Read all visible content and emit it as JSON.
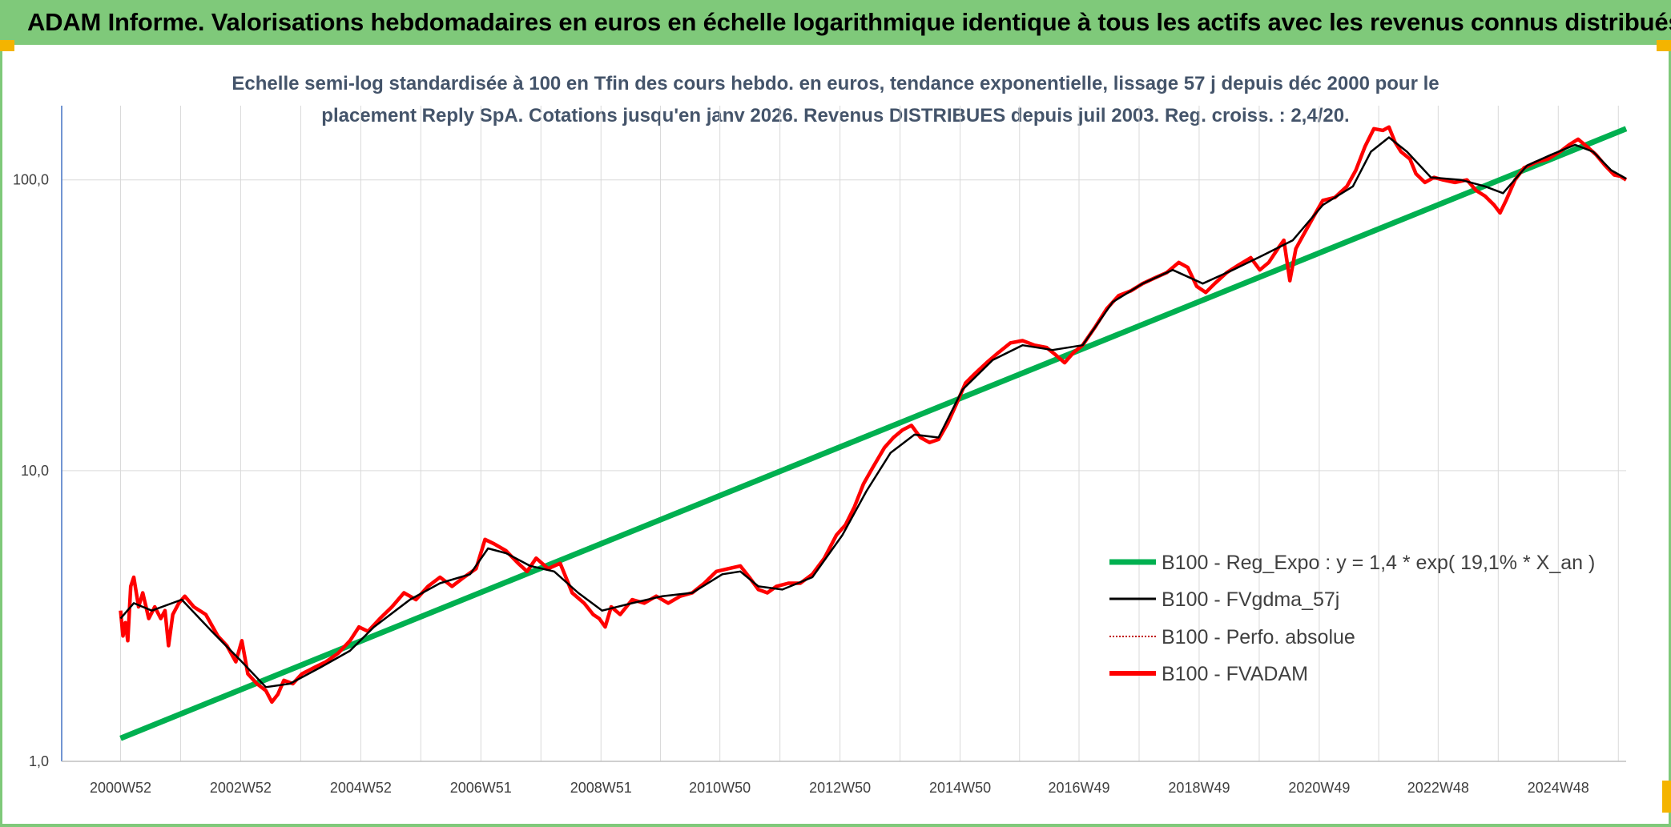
{
  "header": {
    "title": "ADAM Informe. Valorisations hebdomadaires en euros en échelle logarithmique identique à tous les actifs avec les revenus connus distribués"
  },
  "colors": {
    "banner": "#7fc97a",
    "accent": "#f4b400",
    "trend": "#00b050",
    "fvadam": "#ff0000",
    "smooth": "#000000"
  },
  "chart_data": {
    "type": "line",
    "title_lines": [
      "Echelle semi-log standardisée à 100 en Tfin des cours hebdo. en euros, tendance exponentielle, lissage 57 j depuis déc 2000 pour le",
      "placement Reply SpA. Cotations jusqu'en janv 2026. Revenus DISTRIBUES depuis juil 2003. Reg. croiss. : 2,4/20."
    ],
    "y_scale": "log",
    "ylim": [
      1,
      180
    ],
    "y_ticks": [
      {
        "value": 1,
        "label": "1,0"
      },
      {
        "value": 10,
        "label": "10,0"
      },
      {
        "value": 100,
        "label": "100,0"
      }
    ],
    "xlim": [
      2000.0,
      2026.05
    ],
    "x_ticks": [
      {
        "value": 2000.98,
        "label": "2000W52"
      },
      {
        "value": 2002.98,
        "label": "2002W52"
      },
      {
        "value": 2004.98,
        "label": "2004W52"
      },
      {
        "value": 2006.98,
        "label": "2006W51"
      },
      {
        "value": 2008.98,
        "label": "2008W51"
      },
      {
        "value": 2010.96,
        "label": "2010W50"
      },
      {
        "value": 2012.96,
        "label": "2012W50"
      },
      {
        "value": 2014.96,
        "label": "2014W50"
      },
      {
        "value": 2016.94,
        "label": "2016W49"
      },
      {
        "value": 2018.94,
        "label": "2018W49"
      },
      {
        "value": 2020.94,
        "label": "2020W49"
      },
      {
        "value": 2022.92,
        "label": "2022W48"
      },
      {
        "value": 2024.92,
        "label": "2024W48"
      }
    ],
    "grid_x": [
      2000.0,
      2000.98,
      2001.98,
      2002.98,
      2003.98,
      2004.98,
      2005.98,
      2006.98,
      2007.98,
      2008.98,
      2009.97,
      2010.96,
      2011.96,
      2012.96,
      2013.96,
      2014.96,
      2015.95,
      2016.94,
      2017.94,
      2018.94,
      2019.94,
      2020.94,
      2021.93,
      2022.92,
      2023.92,
      2024.92,
      2025.92
    ],
    "grid_y": [
      10,
      100
    ],
    "legend_position": "right",
    "series": [
      {
        "name": "B100 - Reg_Expo : y = 1,4 * exp( 19,1% *  X_an )",
        "style": "trend",
        "points": [
          [
            2000.98,
            1.2
          ],
          [
            2026.05,
            150
          ]
        ]
      },
      {
        "name": "B100 - FVgdma_57j",
        "style": "smooth",
        "points": [
          [
            2000.98,
            3.1
          ],
          [
            2001.2,
            3.5
          ],
          [
            2001.5,
            3.3
          ],
          [
            2002.0,
            3.6
          ],
          [
            2002.5,
            2.8
          ],
          [
            2003.0,
            2.2
          ],
          [
            2003.4,
            1.8
          ],
          [
            2003.8,
            1.85
          ],
          [
            2004.3,
            2.1
          ],
          [
            2004.8,
            2.4
          ],
          [
            2005.2,
            2.9
          ],
          [
            2005.8,
            3.6
          ],
          [
            2006.3,
            4.1
          ],
          [
            2006.8,
            4.4
          ],
          [
            2007.1,
            5.4
          ],
          [
            2007.4,
            5.2
          ],
          [
            2007.8,
            4.7
          ],
          [
            2008.2,
            4.5
          ],
          [
            2008.6,
            3.8
          ],
          [
            2009.0,
            3.3
          ],
          [
            2009.5,
            3.5
          ],
          [
            2010.0,
            3.7
          ],
          [
            2010.5,
            3.8
          ],
          [
            2011.0,
            4.4
          ],
          [
            2011.3,
            4.5
          ],
          [
            2011.6,
            4.0
          ],
          [
            2012.0,
            3.9
          ],
          [
            2012.5,
            4.3
          ],
          [
            2013.0,
            6.0
          ],
          [
            2013.4,
            8.5
          ],
          [
            2013.8,
            11.5
          ],
          [
            2014.2,
            13.3
          ],
          [
            2014.6,
            13.0
          ],
          [
            2015.0,
            19.0
          ],
          [
            2015.5,
            24.0
          ],
          [
            2016.0,
            27.0
          ],
          [
            2016.5,
            26.0
          ],
          [
            2017.0,
            27.0
          ],
          [
            2017.5,
            38.0
          ],
          [
            2018.0,
            44.0
          ],
          [
            2018.5,
            49.0
          ],
          [
            2019.0,
            44.0
          ],
          [
            2019.5,
            49.0
          ],
          [
            2020.0,
            55.0
          ],
          [
            2020.5,
            62.0
          ],
          [
            2021.0,
            82.0
          ],
          [
            2021.5,
            95.0
          ],
          [
            2021.8,
            125.0
          ],
          [
            2022.1,
            140.0
          ],
          [
            2022.4,
            125.0
          ],
          [
            2022.8,
            102.0
          ],
          [
            2023.3,
            100.0
          ],
          [
            2023.7,
            95.0
          ],
          [
            2024.0,
            90.0
          ],
          [
            2024.4,
            112.0
          ],
          [
            2024.8,
            122.0
          ],
          [
            2025.2,
            132.0
          ],
          [
            2025.5,
            125.0
          ],
          [
            2025.8,
            108.0
          ],
          [
            2026.05,
            101.0
          ]
        ]
      },
      {
        "name": "B100 - Perfo. absolue",
        "style": "dotted",
        "points": []
      },
      {
        "name": "B100 - FVADAM",
        "style": "main",
        "points": [
          [
            2000.98,
            3.3
          ],
          [
            2001.02,
            2.7
          ],
          [
            2001.06,
            3.0
          ],
          [
            2001.1,
            2.6
          ],
          [
            2001.15,
            4.0
          ],
          [
            2001.2,
            4.3
          ],
          [
            2001.28,
            3.4
          ],
          [
            2001.35,
            3.8
          ],
          [
            2001.45,
            3.1
          ],
          [
            2001.55,
            3.4
          ],
          [
            2001.65,
            3.1
          ],
          [
            2001.72,
            3.3
          ],
          [
            2001.78,
            2.5
          ],
          [
            2001.85,
            3.2
          ],
          [
            2001.95,
            3.5
          ],
          [
            2002.05,
            3.7
          ],
          [
            2002.2,
            3.4
          ],
          [
            2002.4,
            3.2
          ],
          [
            2002.6,
            2.7
          ],
          [
            2002.75,
            2.5
          ],
          [
            2002.9,
            2.2
          ],
          [
            2003.0,
            2.6
          ],
          [
            2003.1,
            2.0
          ],
          [
            2003.25,
            1.85
          ],
          [
            2003.4,
            1.75
          ],
          [
            2003.5,
            1.6
          ],
          [
            2003.6,
            1.7
          ],
          [
            2003.7,
            1.9
          ],
          [
            2003.85,
            1.85
          ],
          [
            2004.0,
            2.0
          ],
          [
            2004.2,
            2.1
          ],
          [
            2004.4,
            2.2
          ],
          [
            2004.6,
            2.35
          ],
          [
            2004.8,
            2.6
          ],
          [
            2004.95,
            2.9
          ],
          [
            2005.1,
            2.8
          ],
          [
            2005.3,
            3.1
          ],
          [
            2005.5,
            3.4
          ],
          [
            2005.7,
            3.8
          ],
          [
            2005.9,
            3.6
          ],
          [
            2006.1,
            4.0
          ],
          [
            2006.3,
            4.3
          ],
          [
            2006.5,
            4.0
          ],
          [
            2006.7,
            4.3
          ],
          [
            2006.9,
            4.6
          ],
          [
            2007.05,
            5.8
          ],
          [
            2007.2,
            5.6
          ],
          [
            2007.4,
            5.3
          ],
          [
            2007.6,
            4.8
          ],
          [
            2007.75,
            4.5
          ],
          [
            2007.9,
            5.0
          ],
          [
            2008.1,
            4.6
          ],
          [
            2008.3,
            4.8
          ],
          [
            2008.5,
            3.8
          ],
          [
            2008.7,
            3.5
          ],
          [
            2008.85,
            3.2
          ],
          [
            2008.95,
            3.1
          ],
          [
            2009.05,
            2.9
          ],
          [
            2009.15,
            3.4
          ],
          [
            2009.3,
            3.2
          ],
          [
            2009.5,
            3.6
          ],
          [
            2009.7,
            3.5
          ],
          [
            2009.9,
            3.7
          ],
          [
            2010.1,
            3.5
          ],
          [
            2010.3,
            3.7
          ],
          [
            2010.5,
            3.8
          ],
          [
            2010.7,
            4.1
          ],
          [
            2010.9,
            4.5
          ],
          [
            2011.1,
            4.6
          ],
          [
            2011.3,
            4.7
          ],
          [
            2011.45,
            4.3
          ],
          [
            2011.6,
            3.9
          ],
          [
            2011.75,
            3.8
          ],
          [
            2011.9,
            4.0
          ],
          [
            2012.1,
            4.1
          ],
          [
            2012.3,
            4.1
          ],
          [
            2012.5,
            4.4
          ],
          [
            2012.7,
            5.0
          ],
          [
            2012.9,
            6.0
          ],
          [
            2013.05,
            6.5
          ],
          [
            2013.2,
            7.5
          ],
          [
            2013.35,
            9.0
          ],
          [
            2013.5,
            10.2
          ],
          [
            2013.7,
            12.0
          ],
          [
            2013.85,
            13.0
          ],
          [
            2014.0,
            13.8
          ],
          [
            2014.15,
            14.3
          ],
          [
            2014.3,
            13.0
          ],
          [
            2014.45,
            12.5
          ],
          [
            2014.6,
            12.8
          ],
          [
            2014.75,
            14.5
          ],
          [
            2014.9,
            17.0
          ],
          [
            2015.05,
            20.0
          ],
          [
            2015.2,
            21.5
          ],
          [
            2015.4,
            23.5
          ],
          [
            2015.6,
            25.5
          ],
          [
            2015.8,
            27.5
          ],
          [
            2016.0,
            28.0
          ],
          [
            2016.2,
            27.0
          ],
          [
            2016.4,
            26.5
          ],
          [
            2016.55,
            25.0
          ],
          [
            2016.7,
            23.5
          ],
          [
            2016.85,
            25.5
          ],
          [
            2017.0,
            27.0
          ],
          [
            2017.2,
            31.0
          ],
          [
            2017.4,
            36.0
          ],
          [
            2017.6,
            40.0
          ],
          [
            2017.8,
            41.5
          ],
          [
            2018.0,
            44.0
          ],
          [
            2018.2,
            46.0
          ],
          [
            2018.4,
            48.0
          ],
          [
            2018.6,
            52.0
          ],
          [
            2018.75,
            50.0
          ],
          [
            2018.9,
            43.0
          ],
          [
            2019.05,
            41.0
          ],
          [
            2019.2,
            44.0
          ],
          [
            2019.4,
            48.0
          ],
          [
            2019.6,
            51.0
          ],
          [
            2019.8,
            54.0
          ],
          [
            2019.95,
            49.0
          ],
          [
            2020.1,
            52.0
          ],
          [
            2020.25,
            58.0
          ],
          [
            2020.35,
            62.0
          ],
          [
            2020.45,
            45.0
          ],
          [
            2020.55,
            58.0
          ],
          [
            2020.7,
            66.0
          ],
          [
            2020.85,
            75.0
          ],
          [
            2021.0,
            85.0
          ],
          [
            2021.2,
            87.0
          ],
          [
            2021.4,
            95.0
          ],
          [
            2021.55,
            108.0
          ],
          [
            2021.7,
            130.0
          ],
          [
            2021.85,
            150.0
          ],
          [
            2022.0,
            148.0
          ],
          [
            2022.1,
            152.0
          ],
          [
            2022.2,
            135.0
          ],
          [
            2022.3,
            125.0
          ],
          [
            2022.45,
            118.0
          ],
          [
            2022.55,
            105.0
          ],
          [
            2022.7,
            98.0
          ],
          [
            2022.85,
            102.0
          ],
          [
            2023.0,
            100.0
          ],
          [
            2023.2,
            98.0
          ],
          [
            2023.4,
            100.0
          ],
          [
            2023.55,
            92.0
          ],
          [
            2023.7,
            88.0
          ],
          [
            2023.85,
            82.0
          ],
          [
            2023.95,
            77.0
          ],
          [
            2024.05,
            85.0
          ],
          [
            2024.2,
            100.0
          ],
          [
            2024.35,
            110.0
          ],
          [
            2024.55,
            115.0
          ],
          [
            2024.75,
            118.0
          ],
          [
            2024.95,
            125.0
          ],
          [
            2025.1,
            132.0
          ],
          [
            2025.25,
            138.0
          ],
          [
            2025.4,
            130.0
          ],
          [
            2025.55,
            122.0
          ],
          [
            2025.7,
            112.0
          ],
          [
            2025.85,
            104.0
          ],
          [
            2025.95,
            103.0
          ],
          [
            2026.05,
            100.0
          ]
        ]
      }
    ]
  }
}
